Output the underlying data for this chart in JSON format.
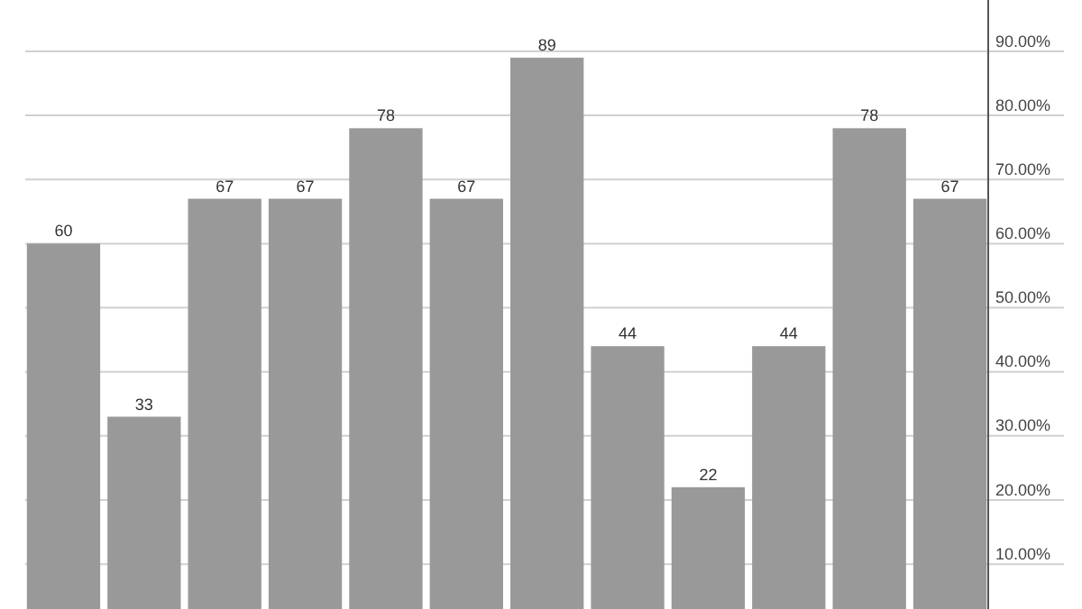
{
  "chart_data": {
    "type": "bar",
    "categories": [
      null,
      null,
      null,
      null,
      null,
      null,
      null,
      null,
      null,
      null,
      null,
      null
    ],
    "values": [
      60,
      33,
      67,
      67,
      78,
      67,
      89,
      44,
      22,
      44,
      78,
      67
    ],
    "color": "#999999",
    "data_labels": true,
    "grid": "y",
    "ylim": [
      3,
      98
    ],
    "yticks": [
      {
        "value": 10,
        "label": "10.00%"
      },
      {
        "value": 20,
        "label": "20.00%"
      },
      {
        "value": 30,
        "label": "30.00%"
      },
      {
        "value": 40,
        "label": "40.00%"
      },
      {
        "value": 50,
        "label": "50.00%"
      },
      {
        "value": 60,
        "label": "60.00%"
      },
      {
        "value": 70,
        "label": "70.00%"
      },
      {
        "value": 80,
        "label": "80.00%"
      },
      {
        "value": 90,
        "label": "90.00%"
      }
    ]
  }
}
